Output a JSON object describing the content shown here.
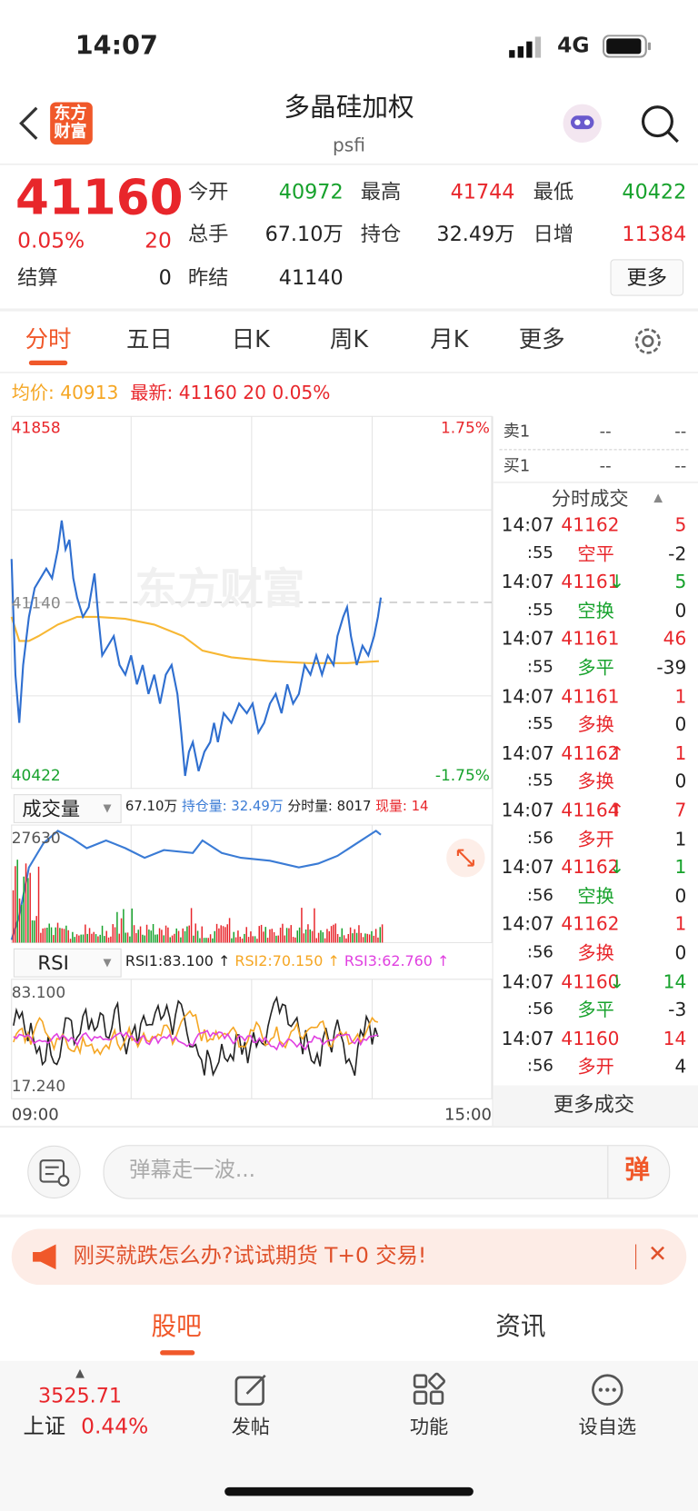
{
  "status": {
    "time": "14:07",
    "network": "4G"
  },
  "header": {
    "logo_top": "东方",
    "logo_bottom": "财富",
    "title": "多晶硅加权",
    "code": "psfi"
  },
  "quote": {
    "price": "41160",
    "change_pct": "0.05%",
    "change": "20",
    "fields": [
      {
        "label": "今开",
        "value": "40972",
        "color": "green"
      },
      {
        "label": "最高",
        "value": "41744",
        "color": "red"
      },
      {
        "label": "最低",
        "value": "40422",
        "color": "green"
      },
      {
        "label": "总手",
        "value": "67.10万",
        "color": "black"
      },
      {
        "label": "持仓",
        "value": "32.49万",
        "color": "black"
      },
      {
        "label": "日增",
        "value": "11384",
        "color": "red"
      }
    ],
    "settle_label": "结算",
    "settle": "0",
    "prev_settle_label": "昨结",
    "prev_settle": "41140",
    "more": "更多"
  },
  "tabs": [
    "分时",
    "五日",
    "日K",
    "周K",
    "月K",
    "更多"
  ],
  "summary": {
    "avg_label": "均价:",
    "avg": "40913",
    "latest_label": "最新:",
    "latest": "41160",
    "change": "20",
    "change_pct": "0.05%"
  },
  "chart": {
    "watermark": "东方财富",
    "top_price": "41858",
    "top_pct": "1.75%",
    "mid_price": "41140",
    "bottom_price": "40422",
    "bottom_pct": "-1.75%",
    "volume_label": "成交量",
    "volume_total": "67.10万",
    "open_interest": "持仓量: 32.49万",
    "minute_volume": "分时量: 8017",
    "current_volume": "现量: 14",
    "volume_max": "27630",
    "rsi_label": "RSI",
    "rsi1": "RSI1:83.100 ↑",
    "rsi2": "RSI2:70.150 ↑",
    "rsi3": "RSI3:62.760 ↑",
    "rsi_max": "83.100",
    "rsi_min": "17.240",
    "start_time": "09:00",
    "end_time": "15:00"
  },
  "order_book": {
    "sell_label": "卖1",
    "sell_price": "--",
    "sell_volume": "--",
    "buy_label": "买1",
    "buy_price": "--",
    "buy_volume": "--"
  },
  "trades": {
    "title": "分时成交",
    "more": "更多成交",
    "rows": [
      {
        "time": "14:07",
        "price": "41162",
        "volume": "5",
        "color": "red",
        "volume_color": "red"
      },
      {
        "time": ":55",
        "type": "空平",
        "volume": "-2",
        "color": "red",
        "volume_color": "black"
      },
      {
        "time": "14:07",
        "price": "41161",
        "arrow": "↓",
        "volume": "5",
        "color": "red",
        "arrow_color": "green",
        "volume_color": "green"
      },
      {
        "time": ":55",
        "type": "空换",
        "volume": "0",
        "color": "green",
        "volume_color": "black"
      },
      {
        "time": "14:07",
        "price": "41161",
        "volume": "46",
        "color": "red",
        "volume_color": "red"
      },
      {
        "time": ":55",
        "type": "多平",
        "volume": "-39",
        "color": "green",
        "volume_color": "black"
      },
      {
        "time": "14:07",
        "price": "41161",
        "volume": "1",
        "color": "red",
        "volume_color": "red"
      },
      {
        "time": ":55",
        "type": "多换",
        "volume": "0",
        "color": "red",
        "volume_color": "black"
      },
      {
        "time": "14:07",
        "price": "41162",
        "arrow": "↑",
        "volume": "1",
        "color": "red",
        "arrow_color": "red",
        "volume_color": "red"
      },
      {
        "time": ":55",
        "type": "多换",
        "volume": "0",
        "color": "red",
        "volume_color": "black"
      },
      {
        "time": "14:07",
        "price": "41164",
        "arrow": "↑",
        "volume": "7",
        "color": "red",
        "arrow_color": "red",
        "volume_color": "red"
      },
      {
        "time": ":56",
        "type": "多开",
        "volume": "1",
        "color": "red",
        "volume_color": "black"
      },
      {
        "time": "14:07",
        "price": "41162",
        "arrow": "↓",
        "volume": "1",
        "color": "red",
        "arrow_color": "green",
        "volume_color": "green"
      },
      {
        "time": ":56",
        "type": "空换",
        "volume": "0",
        "color": "green",
        "volume_color": "black"
      },
      {
        "time": "14:07",
        "price": "41162",
        "volume": "1",
        "color": "red",
        "volume_color": "red"
      },
      {
        "time": ":56",
        "type": "多换",
        "volume": "0",
        "color": "red",
        "volume_color": "black"
      },
      {
        "time": "14:07",
        "price": "41160",
        "arrow": "↓",
        "volume": "14",
        "color": "red",
        "arrow_color": "green",
        "volume_color": "green"
      },
      {
        "time": ":56",
        "type": "多平",
        "volume": "-3",
        "color": "green",
        "volume_color": "black"
      },
      {
        "time": "14:07",
        "price": "41160",
        "volume": "14",
        "color": "red",
        "volume_color": "red"
      },
      {
        "time": ":56",
        "type": "多开",
        "volume": "4",
        "color": "red",
        "volume_color": "black"
      }
    ]
  },
  "comment": {
    "placeholder": "弹幕走一波...",
    "button": "弹"
  },
  "banner": {
    "text": "刚买就跌怎么办?试试期货 T+0 交易!"
  },
  "sub_tabs": [
    "股吧",
    "资讯"
  ],
  "bottom_nav": {
    "index_value": "3525.71",
    "index_name": "上证",
    "index_pct": "0.44%",
    "items": [
      "发帖",
      "功能",
      "设自选"
    ]
  }
}
